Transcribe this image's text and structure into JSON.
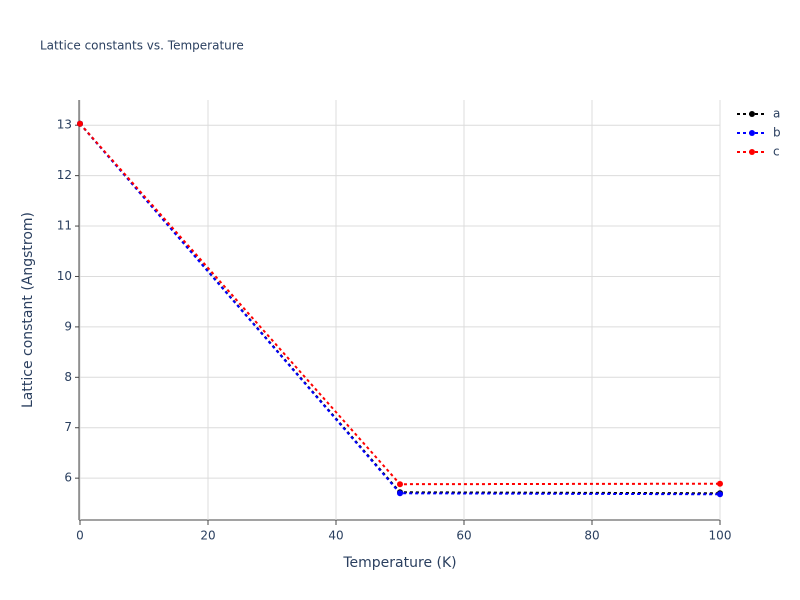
{
  "chart_data": {
    "type": "line",
    "title": "Lattice constants vs. Temperature",
    "x_label": "Temperature (K)",
    "y_label": "Lattice constant (Angstrom)",
    "x": [
      0,
      50,
      100
    ],
    "series": [
      {
        "name": "a",
        "color": "#000000",
        "values": [
          13.03,
          5.72,
          5.7
        ]
      },
      {
        "name": "b",
        "color": "#0000ff",
        "values": [
          13.03,
          5.7,
          5.68
        ]
      },
      {
        "name": "c",
        "color": "#ff0000",
        "values": [
          13.03,
          5.88,
          5.89
        ]
      }
    ],
    "xlim": [
      0,
      100
    ],
    "xticks": [
      0,
      20,
      40,
      60,
      80,
      100
    ],
    "ylim": [
      5.17,
      13.5
    ],
    "yticks": [
      6,
      7,
      8,
      9,
      10,
      11,
      12,
      13
    ],
    "grid": true,
    "dash": "dot",
    "markers": true,
    "legend": "top-right"
  }
}
